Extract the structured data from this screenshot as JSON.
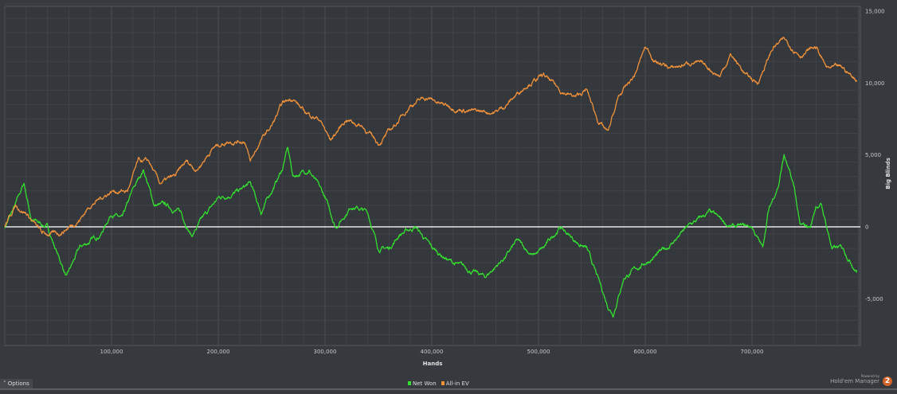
{
  "chart_data": {
    "type": "line",
    "xlabel": "Hands",
    "ylabel": "Big Blinds",
    "xlim": [
      0,
      800000
    ],
    "ylim": [
      -7500,
      15500
    ],
    "xticks": [
      100000,
      200000,
      300000,
      400000,
      500000,
      600000,
      700000
    ],
    "xtick_labels": [
      "100,000",
      "200,000",
      "300,000",
      "400,000",
      "500,000",
      "600,000",
      "700,000"
    ],
    "yticks": [
      15000,
      10000,
      5000,
      0,
      -5000
    ],
    "ytick_labels": [
      "15,000",
      "10,000",
      "5,000",
      "0",
      "-5,000"
    ],
    "grid": true,
    "legend": "bottom-center",
    "series": [
      {
        "name": "Net Won",
        "color": "#33e02f",
        "points": [
          [
            0,
            0
          ],
          [
            10000,
            1500
          ],
          [
            18000,
            3000
          ],
          [
            25000,
            500
          ],
          [
            40000,
            0
          ],
          [
            50000,
            -2000
          ],
          [
            58000,
            -3500
          ],
          [
            70000,
            -1500
          ],
          [
            90000,
            -500
          ],
          [
            100000,
            1000
          ],
          [
            110000,
            500
          ],
          [
            120000,
            2500
          ],
          [
            130000,
            4000
          ],
          [
            140000,
            1500
          ],
          [
            150000,
            1500
          ],
          [
            165000,
            1000
          ],
          [
            175000,
            -600
          ],
          [
            185000,
            500
          ],
          [
            200000,
            2000
          ],
          [
            220000,
            2500
          ],
          [
            230000,
            3000
          ],
          [
            240000,
            1000
          ],
          [
            250000,
            2500
          ],
          [
            260000,
            4000
          ],
          [
            265000,
            5500
          ],
          [
            270000,
            3500
          ],
          [
            285000,
            4000
          ],
          [
            300000,
            2000
          ],
          [
            310000,
            0
          ],
          [
            325000,
            1500
          ],
          [
            340000,
            1000
          ],
          [
            350000,
            -1500
          ],
          [
            360000,
            -1500
          ],
          [
            370000,
            -500
          ],
          [
            385000,
            0
          ],
          [
            400000,
            -1500
          ],
          [
            420000,
            -2500
          ],
          [
            450000,
            -3500
          ],
          [
            470000,
            -2000
          ],
          [
            480000,
            -1000
          ],
          [
            495000,
            -2000
          ],
          [
            505000,
            -1500
          ],
          [
            520000,
            0
          ],
          [
            535000,
            -1000
          ],
          [
            545000,
            -1500
          ],
          [
            555000,
            -3500
          ],
          [
            565000,
            -5500
          ],
          [
            570000,
            -6000
          ],
          [
            580000,
            -3500
          ],
          [
            600000,
            -2500
          ],
          [
            620000,
            -1500
          ],
          [
            640000,
            0
          ],
          [
            660000,
            1000
          ],
          [
            680000,
            0
          ],
          [
            700000,
            0
          ],
          [
            710000,
            -1500
          ],
          [
            715000,
            1000
          ],
          [
            725000,
            3000
          ],
          [
            730000,
            5000
          ],
          [
            740000,
            2500
          ],
          [
            745000,
            0
          ],
          [
            755000,
            0
          ],
          [
            760000,
            1500
          ],
          [
            765000,
            1500
          ],
          [
            775000,
            -1500
          ],
          [
            785000,
            -1500
          ],
          [
            798000,
            -3000
          ]
        ]
      },
      {
        "name": "All-in EV",
        "color": "#f0913a",
        "points": [
          [
            0,
            0
          ],
          [
            10000,
            1500
          ],
          [
            20000,
            1000
          ],
          [
            35000,
            -500
          ],
          [
            50000,
            -500
          ],
          [
            60000,
            0
          ],
          [
            70000,
            500
          ],
          [
            80000,
            1500
          ],
          [
            100000,
            2500
          ],
          [
            115000,
            2500
          ],
          [
            125000,
            4500
          ],
          [
            135000,
            4500
          ],
          [
            145000,
            3000
          ],
          [
            160000,
            3500
          ],
          [
            170000,
            4500
          ],
          [
            180000,
            4000
          ],
          [
            195000,
            5500
          ],
          [
            210000,
            6000
          ],
          [
            225000,
            6000
          ],
          [
            230000,
            4500
          ],
          [
            240000,
            6000
          ],
          [
            250000,
            7000
          ],
          [
            260000,
            8500
          ],
          [
            270000,
            9000
          ],
          [
            280000,
            8000
          ],
          [
            295000,
            7500
          ],
          [
            305000,
            6000
          ],
          [
            320000,
            7500
          ],
          [
            335000,
            7000
          ],
          [
            350000,
            5800
          ],
          [
            365000,
            7000
          ],
          [
            380000,
            8500
          ],
          [
            395000,
            9000
          ],
          [
            410000,
            8500
          ],
          [
            440000,
            8000
          ],
          [
            460000,
            8000
          ],
          [
            470000,
            8500
          ],
          [
            490000,
            10000
          ],
          [
            505000,
            10500
          ],
          [
            520000,
            9500
          ],
          [
            535000,
            9000
          ],
          [
            545000,
            9500
          ],
          [
            555000,
            7500
          ],
          [
            565000,
            6500
          ],
          [
            575000,
            9000
          ],
          [
            590000,
            10500
          ],
          [
            600000,
            12500
          ],
          [
            610000,
            11500
          ],
          [
            625000,
            11000
          ],
          [
            645000,
            11500
          ],
          [
            660000,
            11000
          ],
          [
            670000,
            10500
          ],
          [
            680000,
            12000
          ],
          [
            695000,
            10500
          ],
          [
            705000,
            10000
          ],
          [
            720000,
            12500
          ],
          [
            730000,
            13000
          ],
          [
            745000,
            12000
          ],
          [
            760000,
            12500
          ],
          [
            770000,
            11000
          ],
          [
            785000,
            11000
          ],
          [
            798000,
            10200
          ]
        ]
      }
    ]
  },
  "ui": {
    "options_label": "Options",
    "options_icon": "caret-up-icon",
    "brand_powered": "Powered by",
    "brand_name": "Hold'em Manager",
    "brand_logo": "2"
  }
}
